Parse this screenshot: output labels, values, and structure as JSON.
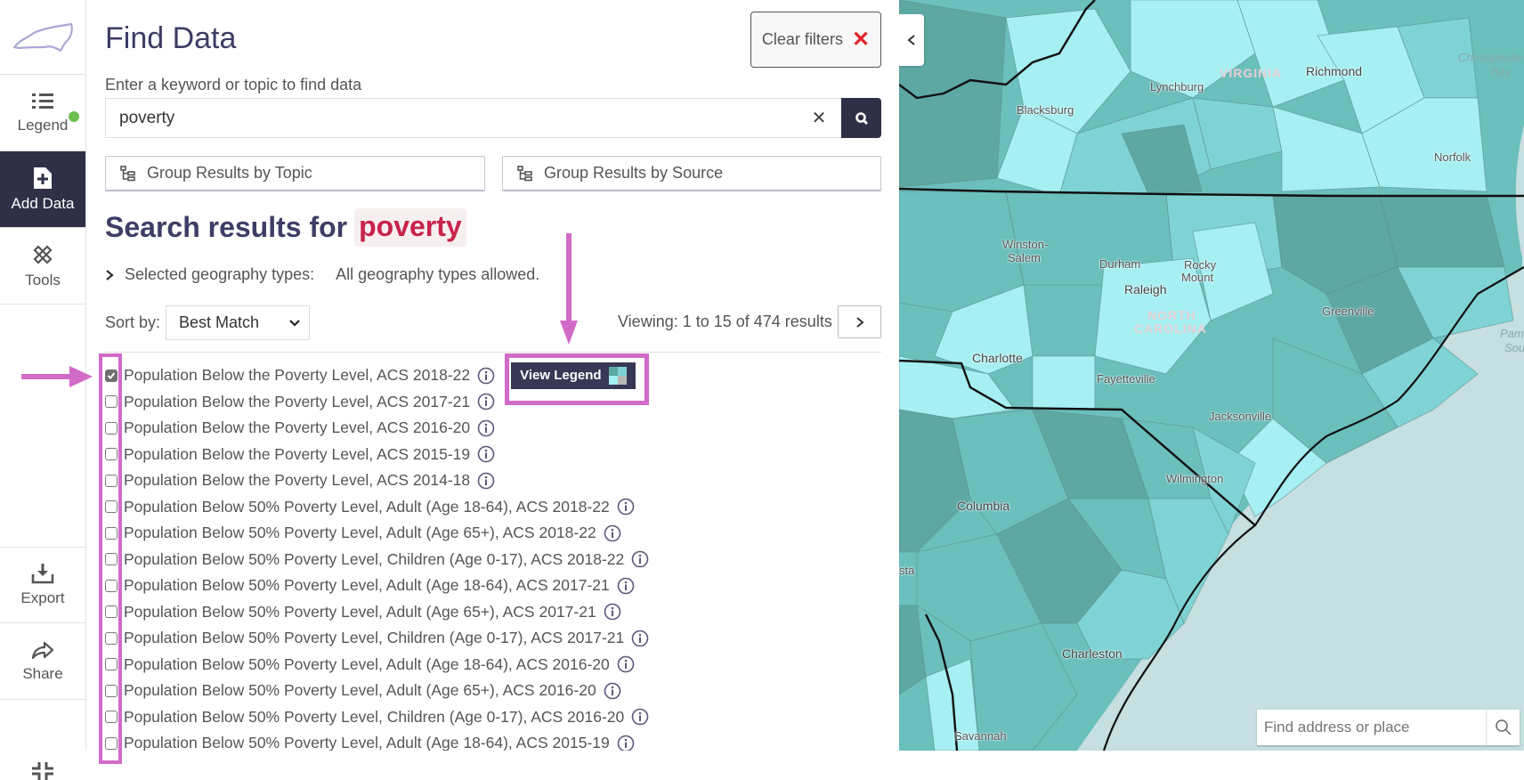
{
  "rail": {
    "items": [
      {
        "label": "Legend",
        "icon": "list-icon",
        "status_dot_color": "#6cbf4f"
      },
      {
        "label": "Add Data",
        "icon": "add-file-icon",
        "active": true
      },
      {
        "label": "Tools",
        "icon": "tools-icon"
      }
    ],
    "bottom": [
      {
        "label": "Export",
        "icon": "download-icon"
      },
      {
        "label": "Share",
        "icon": "share-icon"
      }
    ]
  },
  "panel": {
    "title": "Find Data",
    "clear_filters": "Clear filters",
    "search_label": "Enter a keyword or topic to find data",
    "search_value": "poverty",
    "clear_symbol": "✕",
    "group_by_topic": "Group Results by Topic",
    "group_by_source": "Group Results by Source",
    "results_heading_prefix": "Search results for",
    "results_term": "poverty",
    "geo_label": "Selected geography types:",
    "geo_value": "All geography types allowed.",
    "sort_label": "Sort by:",
    "sort_value": "Best Match",
    "viewing": "Viewing: 1 to 15 of 474 results",
    "view_legend": "View Legend"
  },
  "results": [
    {
      "label": "Population Below the Poverty Level, ACS 2018-22",
      "checked": true
    },
    {
      "label": "Population Below the Poverty Level, ACS 2017-21",
      "checked": false
    },
    {
      "label": "Population Below the Poverty Level, ACS 2016-20",
      "checked": false
    },
    {
      "label": "Population Below the Poverty Level, ACS 2015-19",
      "checked": false
    },
    {
      "label": "Population Below the Poverty Level, ACS 2014-18",
      "checked": false
    },
    {
      "label": "Population Below 50% Poverty Level, Adult (Age 18-64), ACS 2018-22",
      "checked": false
    },
    {
      "label": "Population Below 50% Poverty Level, Adult (Age 65+), ACS 2018-22",
      "checked": false
    },
    {
      "label": "Population Below 50% Poverty Level, Children (Age 0-17), ACS 2018-22",
      "checked": false
    },
    {
      "label": "Population Below 50% Poverty Level, Adult (Age 18-64), ACS 2017-21",
      "checked": false
    },
    {
      "label": "Population Below 50% Poverty Level, Adult (Age 65+), ACS 2017-21",
      "checked": false
    },
    {
      "label": "Population Below 50% Poverty Level, Children (Age 0-17), ACS 2017-21",
      "checked": false
    },
    {
      "label": "Population Below 50% Poverty Level, Adult (Age 18-64), ACS 2016-20",
      "checked": false
    },
    {
      "label": "Population Below 50% Poverty Level, Adult (Age 65+), ACS 2016-20",
      "checked": false
    },
    {
      "label": "Population Below 50% Poverty Level, Children (Age 0-17), ACS 2016-20",
      "checked": false
    },
    {
      "label": "Population Below 50% Poverty Level, Adult (Age 18-64), ACS 2015-19",
      "checked": false
    }
  ],
  "map": {
    "labels": {
      "virginia": "VIRGINIA",
      "richmond": "Richmond",
      "lynchburg": "Lynchburg",
      "blacksburg": "Blacksburg",
      "chesapeake": "Chesapeake",
      "bay": "Bay",
      "norfolk": "Norfolk",
      "winston": "Winston-",
      "salem": "Salem",
      "durham": "Durham",
      "raleigh": "Raleigh",
      "rocky": "Rocky",
      "mount": "Mount",
      "north": "NORTH",
      "carolina": "CAROLINA",
      "greenville": "Greenville",
      "pamlico": "Pamlico",
      "sound": "Sound",
      "charlotte": "Charlotte",
      "fayetteville": "Fayetteville",
      "jacksonville": "Jacksonville",
      "wilmington": "Wilmington",
      "columbia": "Columbia",
      "augusta_partial": "sta",
      "charleston": "Charleston",
      "savannah": "Savannah"
    },
    "search_placeholder": "Find address or place",
    "colors": {
      "water": "#c6dfe0",
      "class1": "#a6eff2",
      "class2": "#7fd3d5",
      "class3": "#6bbfbd",
      "class4": "#5ea8a4"
    }
  },
  "annotations": {
    "color": "#d26ac7"
  }
}
